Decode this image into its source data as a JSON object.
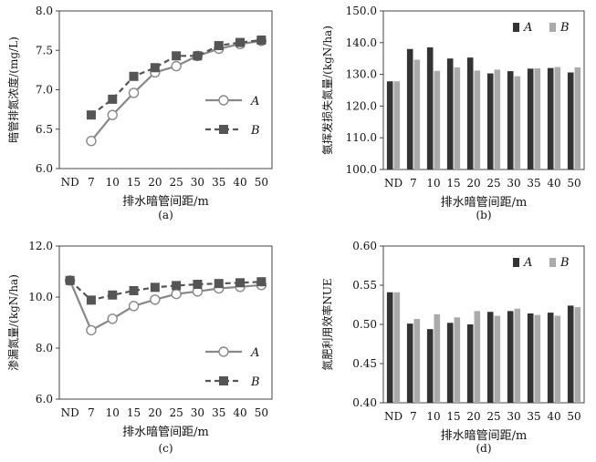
{
  "chart_data": [
    {
      "id": "a",
      "type": "line",
      "caption": "(a)",
      "xlabel": "排水暗管间距/m",
      "ylabel": "暗管排氮浓度/(mg/L)",
      "categories": [
        "ND",
        "7",
        "10",
        "15",
        "20",
        "25",
        "30",
        "35",
        "40",
        "50"
      ],
      "ylim": [
        6.0,
        8.0
      ],
      "yticks": [
        "6.0",
        "6.5",
        "7.0",
        "7.5",
        "8.0"
      ],
      "legend_position": "middle-right",
      "series": [
        {
          "name": "A",
          "marker": "circle",
          "dash": false,
          "values": [
            null,
            6.35,
            6.68,
            6.96,
            7.22,
            7.3,
            7.43,
            7.52,
            7.58,
            7.62
          ]
        },
        {
          "name": "B",
          "marker": "square",
          "dash": true,
          "values": [
            null,
            6.68,
            6.88,
            7.17,
            7.28,
            7.43,
            7.43,
            7.56,
            7.6,
            7.63
          ]
        }
      ]
    },
    {
      "id": "b",
      "type": "bar",
      "caption": "(b)",
      "xlabel": "排水暗管间距/m",
      "ylabel": "氨挥发损失氮量/(kgN/ha)",
      "categories": [
        "ND",
        "7",
        "10",
        "15",
        "20",
        "25",
        "30",
        "35",
        "40",
        "50"
      ],
      "ylim": [
        100.0,
        150.0
      ],
      "yticks": [
        "100.0",
        "110.0",
        "120.0",
        "130.0",
        "140.0",
        "150.0"
      ],
      "legend_position": "top-right",
      "series": [
        {
          "name": "A",
          "values": [
            127.8,
            138.0,
            138.5,
            135.0,
            135.3,
            130.3,
            131.0,
            131.8,
            132.0,
            130.6
          ]
        },
        {
          "name": "B",
          "values": [
            127.8,
            134.6,
            131.1,
            132.2,
            131.2,
            131.5,
            129.4,
            131.9,
            132.3,
            132.2
          ]
        }
      ]
    },
    {
      "id": "c",
      "type": "line",
      "caption": "(c)",
      "xlabel": "排水暗管间距/m",
      "ylabel": "渗漏氮量/(kgN/ha)",
      "categories": [
        "ND",
        "7",
        "10",
        "15",
        "20",
        "25",
        "30",
        "35",
        "40",
        "50"
      ],
      "ylim": [
        6.0,
        12.0
      ],
      "yticks": [
        "6.0",
        "8.0",
        "10.0",
        "12.0"
      ],
      "legend_position": "bottom-right",
      "series": [
        {
          "name": "A",
          "marker": "circle",
          "dash": false,
          "values": [
            10.65,
            8.7,
            9.15,
            9.65,
            9.9,
            10.12,
            10.22,
            10.34,
            10.4,
            10.47
          ]
        },
        {
          "name": "B",
          "marker": "square",
          "dash": true,
          "values": [
            10.65,
            9.88,
            10.08,
            10.25,
            10.38,
            10.45,
            10.5,
            10.53,
            10.56,
            10.6
          ]
        }
      ]
    },
    {
      "id": "d",
      "type": "bar",
      "caption": "(d)",
      "xlabel": "排水暗管间距/m",
      "ylabel": "氮肥利用效率NUE",
      "categories": [
        "ND",
        "7",
        "10",
        "15",
        "20",
        "25",
        "30",
        "35",
        "40",
        "50"
      ],
      "ylim": [
        0.4,
        0.6
      ],
      "yticks": [
        "0.40",
        "0.45",
        "0.50",
        "0.55",
        "0.60"
      ],
      "legend_position": "top-right",
      "series": [
        {
          "name": "A",
          "values": [
            0.541,
            0.501,
            0.494,
            0.502,
            0.5,
            0.516,
            0.517,
            0.514,
            0.515,
            0.524
          ]
        },
        {
          "name": "B",
          "values": [
            0.541,
            0.507,
            0.513,
            0.509,
            0.517,
            0.511,
            0.52,
            0.512,
            0.511,
            0.522
          ]
        }
      ]
    }
  ],
  "colors": {
    "A": "#333333",
    "B": "#aaaaaa",
    "axis": "#444444"
  }
}
